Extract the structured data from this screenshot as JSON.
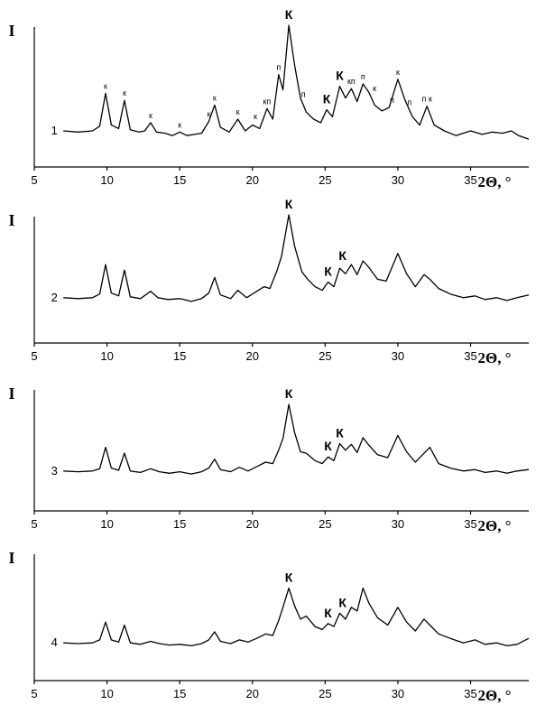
{
  "chart_data": [
    {
      "type": "line",
      "curve_label": "1",
      "ylabel": "I",
      "xlabel": "2Θ, °",
      "xlim": [
        5,
        39
      ],
      "xticks": [
        "5",
        "10",
        "15",
        "20",
        "25",
        "30",
        "35"
      ],
      "grid": false,
      "x": [
        7,
        8,
        9,
        9.5,
        9.9,
        10.3,
        10.8,
        11.2,
        11.6,
        12.2,
        12.6,
        13.0,
        13.4,
        14.0,
        14.5,
        15.0,
        15.5,
        16.0,
        16.5,
        17.0,
        17.4,
        17.8,
        18.4,
        19.0,
        19.5,
        20.0,
        20.5,
        21.0,
        21.4,
        21.8,
        22.1,
        22.5,
        22.9,
        23.3,
        23.7,
        24.2,
        24.7,
        25.1,
        25.5,
        26.0,
        26.4,
        26.8,
        27.2,
        27.6,
        28.0,
        28.4,
        28.9,
        29.4,
        30.0,
        30.5,
        31.0,
        31.5,
        32.0,
        32.5,
        33.2,
        34.0,
        35.0,
        35.8,
        36.5,
        37.2,
        37.8,
        38.3,
        39
      ],
      "y": [
        0.1,
        0.09,
        0.1,
        0.14,
        0.42,
        0.15,
        0.12,
        0.36,
        0.11,
        0.09,
        0.1,
        0.17,
        0.09,
        0.08,
        0.06,
        0.09,
        0.06,
        0.07,
        0.08,
        0.18,
        0.32,
        0.13,
        0.09,
        0.2,
        0.1,
        0.15,
        0.12,
        0.29,
        0.2,
        0.58,
        0.45,
        1.0,
        0.66,
        0.38,
        0.26,
        0.2,
        0.17,
        0.28,
        0.22,
        0.48,
        0.38,
        0.46,
        0.35,
        0.5,
        0.43,
        0.32,
        0.27,
        0.3,
        0.54,
        0.36,
        0.22,
        0.15,
        0.31,
        0.15,
        0.1,
        0.06,
        0.1,
        0.07,
        0.09,
        0.08,
        0.1,
        0.06,
        0.03
      ],
      "annotations": [
        {
          "x": 9.9,
          "y": 0.42,
          "text": "к"
        },
        {
          "x": 11.2,
          "y": 0.36,
          "text": "к"
        },
        {
          "x": 13.0,
          "y": 0.17,
          "text": "к"
        },
        {
          "x": 15.0,
          "y": 0.09,
          "text": "к"
        },
        {
          "x": 17.0,
          "y": 0.18,
          "text": "к"
        },
        {
          "x": 17.4,
          "y": 0.32,
          "text": "к"
        },
        {
          "x": 19.0,
          "y": 0.2,
          "text": "к"
        },
        {
          "x": 20.2,
          "y": 0.16,
          "text": "к"
        },
        {
          "x": 21.0,
          "y": 0.29,
          "text": "кп"
        },
        {
          "x": 21.8,
          "y": 0.58,
          "text": "п"
        },
        {
          "x": 22.5,
          "y": 1.0,
          "text": "К"
        },
        {
          "x": 23.5,
          "y": 0.35,
          "text": "п"
        },
        {
          "x": 25.1,
          "y": 0.28,
          "text": "К"
        },
        {
          "x": 26.0,
          "y": 0.48,
          "text": "К"
        },
        {
          "x": 26.8,
          "y": 0.46,
          "text": "кп"
        },
        {
          "x": 27.6,
          "y": 0.5,
          "text": "п"
        },
        {
          "x": 28.4,
          "y": 0.4,
          "text": "к"
        },
        {
          "x": 30.0,
          "y": 0.54,
          "text": "к"
        },
        {
          "x": 29.6,
          "y": 0.3,
          "text": "п"
        },
        {
          "x": 30.8,
          "y": 0.28,
          "text": "п"
        },
        {
          "x": 32.0,
          "y": 0.31,
          "text": "п к"
        }
      ]
    },
    {
      "type": "line",
      "curve_label": "2",
      "ylabel": "I",
      "xlabel": "2Θ, °",
      "xlim": [
        5,
        39
      ],
      "xticks": [
        "5",
        "10",
        "15",
        "20",
        "25",
        "30",
        "35"
      ],
      "grid": false,
      "x": [
        7,
        8,
        9,
        9.5,
        9.9,
        10.3,
        10.8,
        11.2,
        11.6,
        12.3,
        13.0,
        13.5,
        14.2,
        15.0,
        15.8,
        16.5,
        17.0,
        17.4,
        17.8,
        18.5,
        19.0,
        19.6,
        20.3,
        20.8,
        21.2,
        21.7,
        22.0,
        22.5,
        22.9,
        23.4,
        23.8,
        24.3,
        24.8,
        25.2,
        25.6,
        26.0,
        26.4,
        26.8,
        27.2,
        27.6,
        28.0,
        28.6,
        29.2,
        30.0,
        30.6,
        31.2,
        31.8,
        32.2,
        32.8,
        33.6,
        34.5,
        35.3,
        36.0,
        36.8,
        37.5,
        38.2,
        39
      ],
      "y": [
        0.1,
        0.09,
        0.1,
        0.14,
        0.46,
        0.15,
        0.12,
        0.4,
        0.11,
        0.09,
        0.17,
        0.1,
        0.08,
        0.09,
        0.06,
        0.09,
        0.15,
        0.32,
        0.13,
        0.09,
        0.18,
        0.1,
        0.17,
        0.22,
        0.2,
        0.4,
        0.55,
        1.0,
        0.66,
        0.38,
        0.3,
        0.22,
        0.18,
        0.27,
        0.22,
        0.42,
        0.36,
        0.46,
        0.35,
        0.5,
        0.43,
        0.3,
        0.28,
        0.58,
        0.36,
        0.22,
        0.35,
        0.3,
        0.2,
        0.14,
        0.1,
        0.12,
        0.08,
        0.1,
        0.07,
        0.1,
        0.13
      ],
      "annotations": [
        {
          "x": 22.5,
          "y": 1.0,
          "text": "К"
        },
        {
          "x": 25.2,
          "y": 0.27,
          "text": "К"
        },
        {
          "x": 26.2,
          "y": 0.44,
          "text": "К"
        }
      ]
    },
    {
      "type": "line",
      "curve_label": "3",
      "ylabel": "I",
      "xlabel": "2Θ, °",
      "xlim": [
        5,
        39
      ],
      "xticks": [
        "5",
        "10",
        "15",
        "20",
        "25",
        "30",
        "35"
      ],
      "grid": false,
      "x": [
        7,
        8,
        9,
        9.5,
        9.9,
        10.3,
        10.8,
        11.2,
        11.6,
        12.3,
        13.0,
        13.6,
        14.3,
        15.0,
        15.8,
        16.5,
        17.0,
        17.4,
        17.8,
        18.5,
        19.1,
        19.7,
        20.3,
        20.9,
        21.4,
        21.8,
        22.1,
        22.5,
        22.9,
        23.3,
        23.7,
        24.3,
        24.8,
        25.2,
        25.6,
        26.0,
        26.4,
        26.8,
        27.2,
        27.6,
        28.0,
        28.6,
        29.3,
        30.0,
        30.6,
        31.2,
        31.8,
        32.2,
        32.8,
        33.6,
        34.5,
        35.3,
        36.0,
        36.8,
        37.5,
        38.2,
        39
      ],
      "y": [
        0.1,
        0.09,
        0.1,
        0.13,
        0.42,
        0.14,
        0.11,
        0.34,
        0.1,
        0.08,
        0.13,
        0.09,
        0.07,
        0.09,
        0.06,
        0.09,
        0.14,
        0.26,
        0.12,
        0.09,
        0.15,
        0.1,
        0.16,
        0.22,
        0.2,
        0.38,
        0.54,
        1.0,
        0.62,
        0.36,
        0.34,
        0.24,
        0.2,
        0.29,
        0.24,
        0.47,
        0.38,
        0.46,
        0.35,
        0.55,
        0.45,
        0.32,
        0.28,
        0.58,
        0.36,
        0.22,
        0.34,
        0.42,
        0.2,
        0.14,
        0.1,
        0.12,
        0.08,
        0.1,
        0.07,
        0.1,
        0.12
      ],
      "annotations": [
        {
          "x": 22.5,
          "y": 1.0,
          "text": "К"
        },
        {
          "x": 25.2,
          "y": 0.29,
          "text": "К"
        },
        {
          "x": 26.0,
          "y": 0.47,
          "text": "К"
        }
      ]
    },
    {
      "type": "line",
      "curve_label": "4",
      "ylabel": "I",
      "xlabel": "2Θ, °",
      "xlim": [
        5,
        39
      ],
      "xticks": [
        "5",
        "10",
        "15",
        "20",
        "25",
        "30",
        "35"
      ],
      "grid": false,
      "x": [
        7,
        8,
        9,
        9.5,
        9.9,
        10.3,
        10.8,
        11.2,
        11.6,
        12.3,
        13.0,
        13.6,
        14.3,
        15.0,
        15.8,
        16.5,
        17.0,
        17.4,
        17.8,
        18.5,
        19.1,
        19.7,
        20.3,
        20.9,
        21.4,
        21.8,
        22.1,
        22.5,
        22.9,
        23.3,
        23.7,
        24.3,
        24.8,
        25.2,
        25.6,
        26.0,
        26.4,
        26.8,
        27.2,
        27.6,
        28.0,
        28.6,
        29.3,
        30.0,
        30.6,
        31.2,
        31.8,
        32.2,
        32.8,
        33.6,
        34.5,
        35.3,
        36.0,
        36.8,
        37.5,
        38.2,
        39
      ],
      "y": [
        0.12,
        0.11,
        0.12,
        0.16,
        0.4,
        0.16,
        0.13,
        0.36,
        0.12,
        0.1,
        0.14,
        0.11,
        0.09,
        0.1,
        0.08,
        0.11,
        0.16,
        0.27,
        0.14,
        0.11,
        0.16,
        0.13,
        0.18,
        0.24,
        0.22,
        0.42,
        0.6,
        0.86,
        0.62,
        0.44,
        0.48,
        0.34,
        0.3,
        0.38,
        0.34,
        0.52,
        0.44,
        0.6,
        0.55,
        0.86,
        0.66,
        0.46,
        0.36,
        0.6,
        0.4,
        0.28,
        0.44,
        0.36,
        0.24,
        0.18,
        0.12,
        0.16,
        0.1,
        0.12,
        0.08,
        0.1,
        0.18
      ],
      "annotations": [
        {
          "x": 22.5,
          "y": 0.86,
          "text": "К"
        },
        {
          "x": 25.2,
          "y": 0.38,
          "text": "К"
        },
        {
          "x": 26.2,
          "y": 0.52,
          "text": "К"
        }
      ]
    }
  ]
}
